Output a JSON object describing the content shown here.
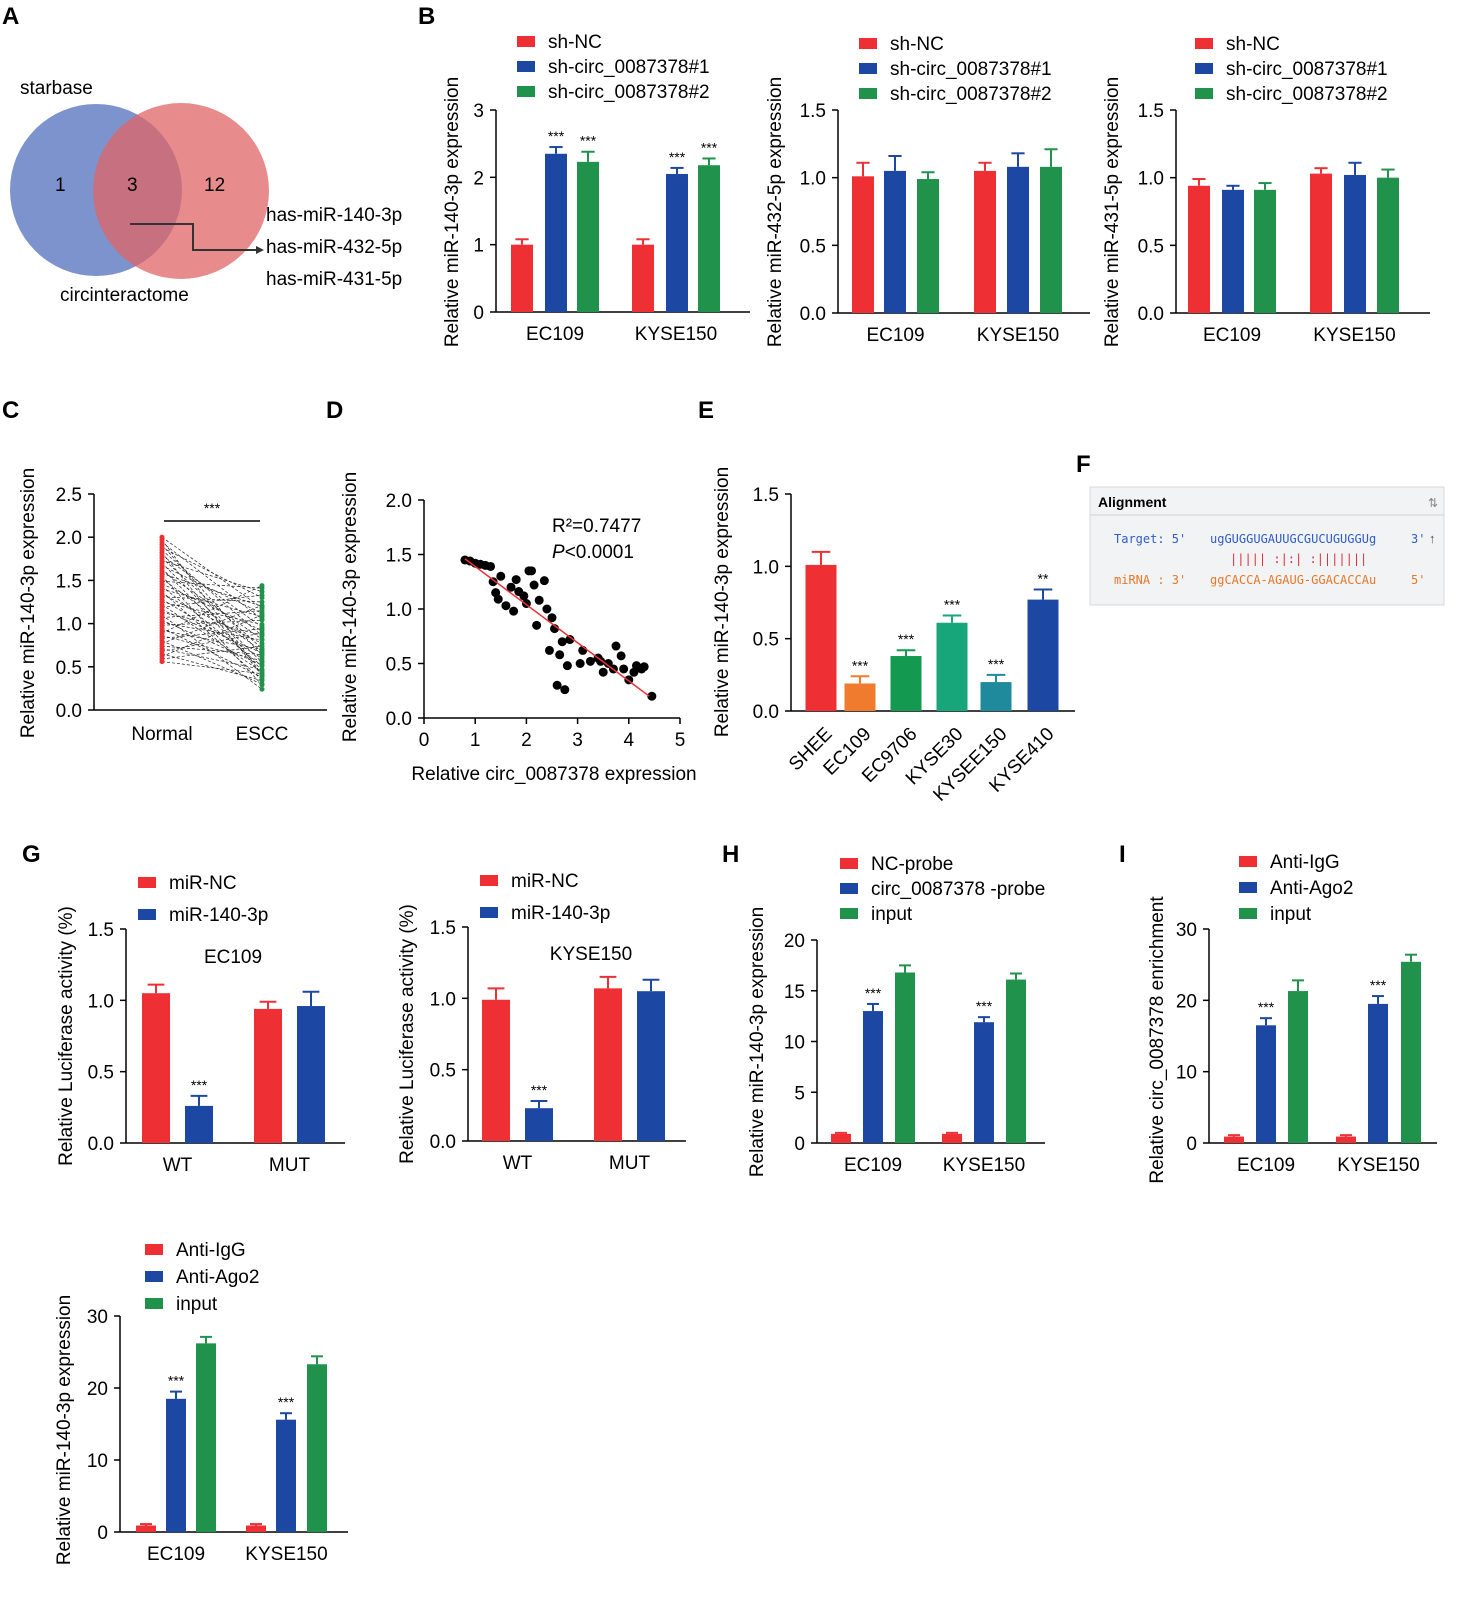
{
  "colors": {
    "red": "#ee3035",
    "blue": "#1c47a3",
    "green": "#21924b",
    "orange": "#f07a2e",
    "green2": "#139a50",
    "teal": "#17a57a",
    "cyan": "#1f8a9c"
  },
  "chart_data": [
    {
      "id": "A",
      "label": "A",
      "type": "venn",
      "sets": [
        {
          "name": "starbase",
          "only": "1"
        },
        {
          "name": "circinteractome",
          "only": "12"
        }
      ],
      "intersection": "3",
      "annotations": [
        "has-miR-140-3p",
        "has-miR-432-5p",
        "has-miR-431-5p"
      ]
    },
    {
      "id": "B1",
      "label": "B",
      "type": "bar",
      "ylabel": "Relative miR-140-3p expression",
      "ylim": [
        0,
        3
      ],
      "ticks": [
        "0",
        "1",
        "2",
        "3"
      ],
      "categories": [
        "EC109",
        "KYSE150"
      ],
      "series": [
        {
          "name": "sh-NC",
          "color": "red",
          "values": [
            1.0,
            1.0
          ],
          "errors": [
            0.08,
            0.08
          ],
          "stars": [
            "",
            ""
          ]
        },
        {
          "name": "sh-circ_0087378#1",
          "color": "blue",
          "values": [
            2.35,
            2.05
          ],
          "errors": [
            0.1,
            0.09
          ],
          "stars": [
            "***",
            "***"
          ]
        },
        {
          "name": "sh-circ_0087378#2",
          "color": "green",
          "values": [
            2.23,
            2.18
          ],
          "errors": [
            0.15,
            0.1
          ],
          "stars": [
            "***",
            "***"
          ]
        }
      ]
    },
    {
      "id": "B2",
      "label": "",
      "type": "bar",
      "ylabel": "Relative miR-432-5p expression",
      "ylim": [
        0,
        1.5
      ],
      "ticks": [
        "0.0",
        "0.5",
        "1.0",
        "1.5"
      ],
      "categories": [
        "EC109",
        "KYSE150"
      ],
      "series": [
        {
          "name": "sh-NC",
          "color": "red",
          "values": [
            1.01,
            1.05
          ],
          "errors": [
            0.1,
            0.06
          ],
          "stars": [
            "",
            ""
          ]
        },
        {
          "name": "sh-circ_0087378#1",
          "color": "blue",
          "values": [
            1.05,
            1.08
          ],
          "errors": [
            0.11,
            0.1
          ],
          "stars": [
            "",
            ""
          ]
        },
        {
          "name": "sh-circ_0087378#2",
          "color": "green",
          "values": [
            0.99,
            1.08
          ],
          "errors": [
            0.05,
            0.13
          ],
          "stars": [
            "",
            ""
          ]
        }
      ]
    },
    {
      "id": "B3",
      "label": "",
      "type": "bar",
      "ylabel": "Relative miR-431-5p expression",
      "ylim": [
        0,
        1.5
      ],
      "ticks": [
        "0.0",
        "0.5",
        "1.0",
        "1.5"
      ],
      "categories": [
        "EC109",
        "KYSE150"
      ],
      "series": [
        {
          "name": "sh-NC",
          "color": "red",
          "values": [
            0.94,
            1.03
          ],
          "errors": [
            0.05,
            0.04
          ],
          "stars": [
            "",
            ""
          ]
        },
        {
          "name": "sh-circ_0087378#1",
          "color": "blue",
          "values": [
            0.91,
            1.02
          ],
          "errors": [
            0.03,
            0.09
          ],
          "stars": [
            "",
            ""
          ]
        },
        {
          "name": "sh-circ_0087378#2",
          "color": "green",
          "values": [
            0.91,
            1.0
          ],
          "errors": [
            0.05,
            0.06
          ],
          "stars": [
            "",
            ""
          ]
        }
      ]
    },
    {
      "id": "C",
      "label": "C",
      "type": "paired",
      "ylabel": "Relative miR-140-3p expression",
      "ylim": [
        0,
        2.5
      ],
      "ticks": [
        "0.0",
        "0.5",
        "1.0",
        "1.5",
        "2.0",
        "2.5"
      ],
      "categories": [
        "Normal",
        "ESCC"
      ],
      "significance": "***",
      "normal": [
        2.0,
        1.97,
        1.94,
        1.91,
        1.88,
        1.85,
        1.82,
        1.79,
        1.76,
        1.73,
        1.7,
        1.67,
        1.64,
        1.61,
        1.58,
        1.55,
        1.52,
        1.49,
        1.46,
        1.43,
        1.4,
        1.37,
        1.34,
        1.31,
        1.28,
        1.25,
        1.22,
        1.19,
        1.16,
        1.13,
        1.1,
        1.07,
        1.04,
        1.01,
        0.98,
        0.95,
        0.92,
        0.89,
        0.86,
        0.83,
        0.8,
        0.77,
        0.74,
        0.71,
        0.68,
        0.65,
        0.62,
        0.59,
        0.56
      ],
      "escc": [
        1.18,
        0.41,
        1.05,
        0.63,
        1.3,
        0.86,
        0.4,
        0.96,
        0.71,
        1.37,
        0.55,
        1.12,
        0.46,
        0.82,
        1.2,
        0.29,
        0.68,
        1.41,
        0.92,
        0.51,
        1.08,
        0.35,
        0.77,
        1.25,
        0.6,
        0.99,
        0.44,
        1.33,
        0.66,
        0.87,
        0.24,
        1.15,
        0.52,
        0.81,
        1.04,
        0.38,
        0.7,
        1.44,
        0.57,
        0.94,
        0.3,
        1.21,
        0.64,
        0.47,
        0.89,
        0.34,
        1.1,
        0.74,
        0.42
      ]
    },
    {
      "id": "D",
      "label": "D",
      "type": "scatter",
      "xlabel": "Relative circ_0087378 expression",
      "ylabel": "Relative miR-140-3p expression",
      "xlim": [
        0,
        5
      ],
      "ylim": [
        0,
        2.0
      ],
      "xticks": [
        "0",
        "1",
        "2",
        "3",
        "4",
        "5"
      ],
      "yticks": [
        "0.0",
        "0.5",
        "1.0",
        "1.5",
        "2.0"
      ],
      "annot_r2": "R²=0.7477",
      "annot_p_italic": "P",
      "annot_p_rest": "<0.0001",
      "fit": {
        "x": [
          0.8,
          4.4
        ],
        "y": [
          1.46,
          0.2
        ]
      },
      "points": [
        [
          0.8,
          1.45
        ],
        [
          0.9,
          1.44
        ],
        [
          1.0,
          1.42
        ],
        [
          1.1,
          1.41
        ],
        [
          1.2,
          1.4
        ],
        [
          1.3,
          1.39
        ],
        [
          1.4,
          1.15
        ],
        [
          1.35,
          1.25
        ],
        [
          1.5,
          1.3
        ],
        [
          1.45,
          1.09
        ],
        [
          1.6,
          1.03
        ],
        [
          1.75,
          0.98
        ],
        [
          1.7,
          1.2
        ],
        [
          1.8,
          1.27
        ],
        [
          1.85,
          1.16
        ],
        [
          1.95,
          1.12
        ],
        [
          2.05,
          1.35
        ],
        [
          2.1,
          1.35
        ],
        [
          2.0,
          1.05
        ],
        [
          2.15,
          1.22
        ],
        [
          2.25,
          1.08
        ],
        [
          2.2,
          0.85
        ],
        [
          2.35,
          1.26
        ],
        [
          2.4,
          1.0
        ],
        [
          2.5,
          0.92
        ],
        [
          2.55,
          0.82
        ],
        [
          2.45,
          0.62
        ],
        [
          2.6,
          0.3
        ],
        [
          2.75,
          0.26
        ],
        [
          2.65,
          0.58
        ],
        [
          2.7,
          0.7
        ],
        [
          2.85,
          0.72
        ],
        [
          2.8,
          0.48
        ],
        [
          3.05,
          0.5
        ],
        [
          3.1,
          0.62
        ],
        [
          3.25,
          0.52
        ],
        [
          3.4,
          0.55
        ],
        [
          3.5,
          0.42
        ],
        [
          3.45,
          0.52
        ],
        [
          3.6,
          0.5
        ],
        [
          3.7,
          0.45
        ],
        [
          3.75,
          0.66
        ],
        [
          3.85,
          0.57
        ],
        [
          3.9,
          0.45
        ],
        [
          4.0,
          0.35
        ],
        [
          4.1,
          0.42
        ],
        [
          4.15,
          0.48
        ],
        [
          4.25,
          0.45
        ],
        [
          4.3,
          0.47
        ],
        [
          4.45,
          0.2
        ]
      ]
    },
    {
      "id": "E",
      "label": "E",
      "type": "bar",
      "ylabel": "Relative miR-140-3p expression",
      "ylim": [
        0,
        1.5
      ],
      "ticks": [
        "0.0",
        "0.5",
        "1.0",
        "1.5"
      ],
      "categories": [
        "SHEE",
        "EC109",
        "EC9706",
        "KYSE30",
        "KYSEE150",
        "KYSE410"
      ],
      "values": [
        1.01,
        0.19,
        0.38,
        0.61,
        0.2,
        0.77
      ],
      "errors": [
        0.09,
        0.05,
        0.04,
        0.05,
        0.05,
        0.07
      ],
      "colors": [
        "red",
        "orange",
        "green2",
        "teal",
        "cyan",
        "blue"
      ],
      "stars": [
        "",
        "***",
        "***",
        "***",
        "***",
        "**"
      ]
    },
    {
      "id": "F",
      "label": "F",
      "type": "alignment",
      "title": "Alignment",
      "target_label": "Target: 5'",
      "target_seq": "ugGUGGUGAUUGCGUCUGUGGUg",
      "target_end": "3'",
      "pairing": "|||||  :|:|  :|||||||",
      "mirna_label": "miRNA  : 3'",
      "mirna_seq": "ggCACCA-AGAUG-GGACACCAu",
      "mirna_end": "5'"
    },
    {
      "id": "G1",
      "label": "G",
      "type": "bar",
      "ylabel": "Relative Luciferase activity (%)",
      "ylim": [
        0,
        1.5
      ],
      "ticks": [
        "0.0",
        "0.5",
        "1.0",
        "1.5"
      ],
      "categories": [
        "WT",
        "MUT"
      ],
      "title": "EC109",
      "series": [
        {
          "name": "miR-NC",
          "color": "red",
          "values": [
            1.05,
            0.94
          ],
          "errors": [
            0.06,
            0.05
          ],
          "stars": [
            "",
            ""
          ]
        },
        {
          "name": "miR-140-3p",
          "color": "blue",
          "values": [
            0.26,
            0.96
          ],
          "errors": [
            0.07,
            0.1
          ],
          "stars": [
            "***",
            ""
          ]
        }
      ]
    },
    {
      "id": "G2",
      "label": "",
      "type": "bar",
      "ylabel": "Relative Luciferase activity (%)",
      "ylim": [
        0,
        1.5
      ],
      "ticks": [
        "0.0",
        "0.5",
        "1.0",
        "1.5"
      ],
      "categories": [
        "WT",
        "MUT"
      ],
      "title": "KYSE150",
      "series": [
        {
          "name": "miR-NC",
          "color": "red",
          "values": [
            0.99,
            1.07
          ],
          "errors": [
            0.08,
            0.08
          ],
          "stars": [
            "",
            ""
          ]
        },
        {
          "name": "miR-140-3p",
          "color": "blue",
          "values": [
            0.23,
            1.05
          ],
          "errors": [
            0.05,
            0.08
          ],
          "stars": [
            "***",
            ""
          ]
        }
      ]
    },
    {
      "id": "H",
      "label": "H",
      "type": "bar",
      "ylabel": "Relative miR-140-3p expression",
      "ylim": [
        0,
        20
      ],
      "ticks": [
        "0",
        "5",
        "10",
        "15",
        "20"
      ],
      "categories": [
        "EC109",
        "KYSE150"
      ],
      "series": [
        {
          "name": "NC-probe",
          "color": "red",
          "values": [
            0.9,
            0.9
          ],
          "errors": [
            0.1,
            0.1
          ],
          "stars": [
            "",
            ""
          ]
        },
        {
          "name": "circ_0087378 -probe",
          "color": "blue",
          "values": [
            13.0,
            11.9
          ],
          "errors": [
            0.7,
            0.5
          ],
          "stars": [
            "***",
            "***"
          ]
        },
        {
          "name": "input",
          "color": "green",
          "values": [
            16.8,
            16.1
          ],
          "errors": [
            0.7,
            0.6
          ],
          "stars": [
            "",
            ""
          ]
        }
      ]
    },
    {
      "id": "I1",
      "label": "I",
      "type": "bar",
      "ylabel": "Relative circ_0087378 enrichment",
      "ylim": [
        0,
        30
      ],
      "ticks": [
        "0",
        "10",
        "20",
        "30"
      ],
      "categories": [
        "EC109",
        "KYSE150"
      ],
      "series": [
        {
          "name": "Anti-IgG",
          "color": "red",
          "values": [
            0.9,
            0.9
          ],
          "errors": [
            0.2,
            0.2
          ],
          "stars": [
            "",
            ""
          ]
        },
        {
          "name": "Anti-Ago2",
          "color": "blue",
          "values": [
            16.5,
            19.5
          ],
          "errors": [
            1.0,
            1.1
          ],
          "stars": [
            "***",
            "***"
          ]
        },
        {
          "name": "input",
          "color": "green",
          "values": [
            21.3,
            25.4
          ],
          "errors": [
            1.5,
            1.0
          ],
          "stars": [
            "",
            ""
          ]
        }
      ]
    },
    {
      "id": "I2",
      "label": "",
      "type": "bar",
      "ylabel": "Relative miR-140-3p expression",
      "ylim": [
        0,
        30
      ],
      "ticks": [
        "0",
        "10",
        "20",
        "30"
      ],
      "categories": [
        "EC109",
        "KYSE150"
      ],
      "series": [
        {
          "name": "Anti-IgG",
          "color": "red",
          "values": [
            0.9,
            0.9
          ],
          "errors": [
            0.2,
            0.2
          ],
          "stars": [
            "",
            ""
          ]
        },
        {
          "name": "Anti-Ago2",
          "color": "blue",
          "values": [
            18.5,
            15.6
          ],
          "errors": [
            1.0,
            0.9
          ],
          "stars": [
            "***",
            "***"
          ]
        },
        {
          "name": "input",
          "color": "green",
          "values": [
            26.2,
            23.3
          ],
          "errors": [
            0.9,
            1.1
          ],
          "stars": [
            "",
            ""
          ]
        }
      ]
    }
  ]
}
